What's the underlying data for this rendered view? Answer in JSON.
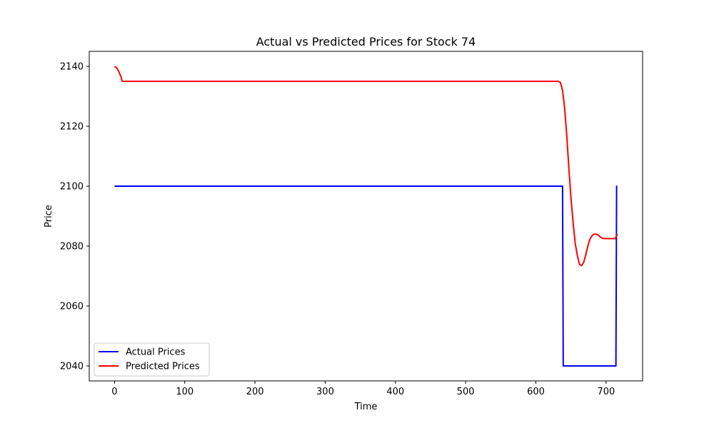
{
  "chart_data": {
    "type": "line",
    "title": "Actual vs Predicted Prices for Stock 74",
    "xlabel": "Time",
    "ylabel": "Price",
    "xlim": [
      -36,
      752
    ],
    "ylim": [
      2035,
      2145
    ],
    "xticks": [
      0,
      100,
      200,
      300,
      400,
      500,
      600,
      700
    ],
    "yticks": [
      2040,
      2060,
      2080,
      2100,
      2120,
      2140
    ],
    "grid": false,
    "legend_position": "lower-left",
    "series": [
      {
        "name": "Actual Prices",
        "color": "#0000ff",
        "points": [
          [
            0,
            2100
          ],
          [
            638,
            2100
          ],
          [
            639,
            2040
          ],
          [
            714,
            2040
          ],
          [
            715,
            2100
          ],
          [
            716,
            2100
          ]
        ]
      },
      {
        "name": "Predicted Prices",
        "color": "#ff0000",
        "points": [
          [
            0,
            2140
          ],
          [
            3,
            2139.5
          ],
          [
            6,
            2138.3
          ],
          [
            9,
            2136.6
          ],
          [
            11,
            2135
          ],
          [
            100,
            2135
          ],
          [
            200,
            2135
          ],
          [
            300,
            2135
          ],
          [
            400,
            2135
          ],
          [
            500,
            2135
          ],
          [
            600,
            2135
          ],
          [
            632,
            2135
          ],
          [
            635,
            2134.6
          ],
          [
            638,
            2132
          ],
          [
            641,
            2126
          ],
          [
            644,
            2117
          ],
          [
            647,
            2106
          ],
          [
            650,
            2096
          ],
          [
            653,
            2088
          ],
          [
            656,
            2081
          ],
          [
            659,
            2077
          ],
          [
            662,
            2074
          ],
          [
            665,
            2073.5
          ],
          [
            668,
            2074.5
          ],
          [
            671,
            2077
          ],
          [
            674,
            2080
          ],
          [
            677,
            2082.3
          ],
          [
            680,
            2083.5
          ],
          [
            683,
            2084
          ],
          [
            686,
            2084
          ],
          [
            689,
            2083.6
          ],
          [
            692,
            2083
          ],
          [
            695,
            2082.6
          ],
          [
            700,
            2082.5
          ],
          [
            705,
            2082.5
          ],
          [
            710,
            2082.5
          ],
          [
            713,
            2082.5
          ],
          [
            716,
            2084
          ]
        ]
      }
    ]
  }
}
